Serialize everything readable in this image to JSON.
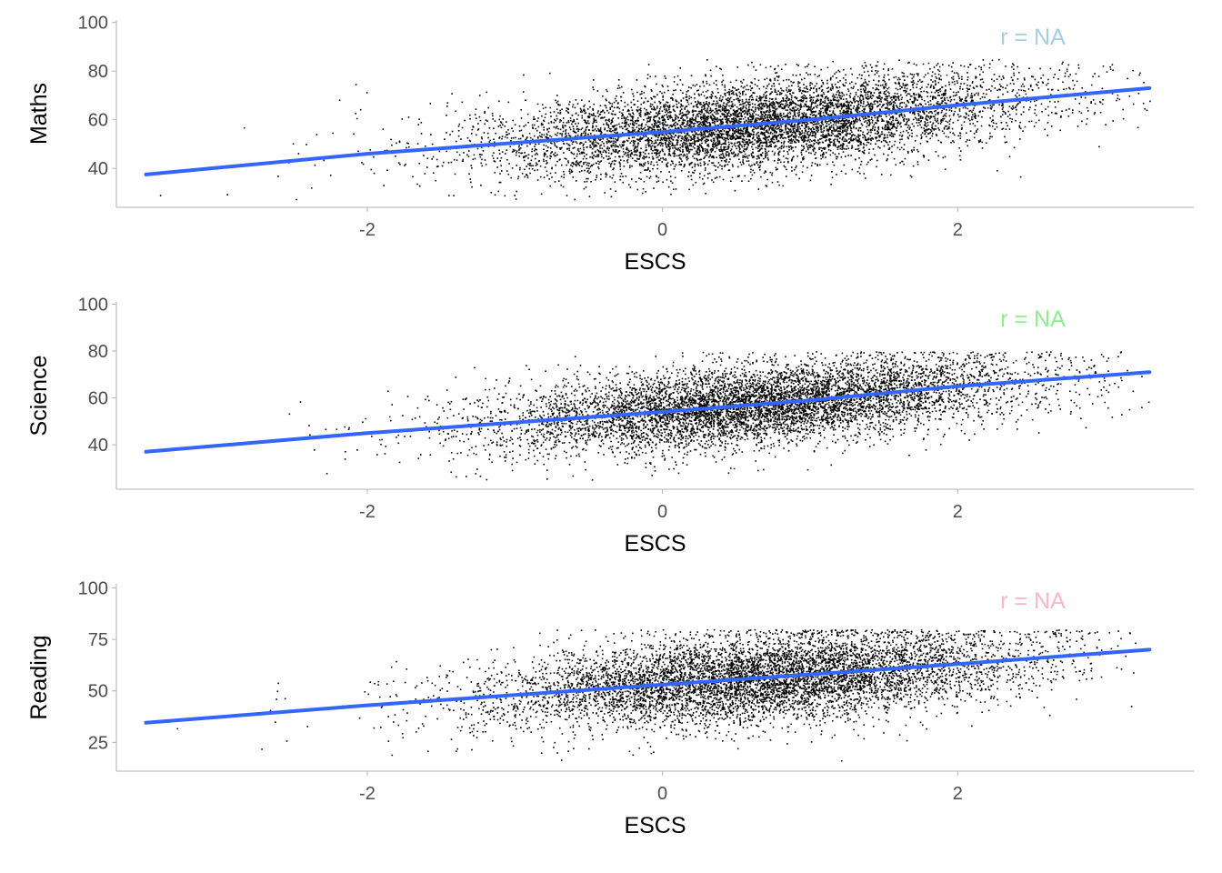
{
  "chart_data": [
    {
      "type": "scatter",
      "xlabel": "ESCS",
      "ylabel": "Maths",
      "annotation": "r = NA",
      "annotation_color": "#A6CEE3",
      "xlim": [
        -3.7,
        3.6
      ],
      "ylim": [
        24,
        101
      ],
      "xticks": [
        -2,
        0,
        2
      ],
      "yticks": [
        40,
        60,
        80,
        100
      ],
      "grid": false,
      "point_color": "#000000",
      "trend_color": "#3366FF",
      "trend": {
        "x": [
          -3.5,
          -2,
          0,
          1,
          2,
          3.3
        ],
        "y": [
          37.5,
          46,
          55,
          60,
          66,
          73
        ]
      },
      "cloud": {
        "count": 7000,
        "x_range": [
          -3.5,
          3.3
        ],
        "x_center": 0.85,
        "y_range": [
          27,
          85
        ],
        "spread": 9
      }
    },
    {
      "type": "scatter",
      "xlabel": "ESCS",
      "ylabel": "Science",
      "annotation": "r = NA",
      "annotation_color": "#90EE90",
      "xlim": [
        -3.7,
        3.6
      ],
      "ylim": [
        21,
        101
      ],
      "xticks": [
        -2,
        0,
        2
      ],
      "yticks": [
        40,
        60,
        80,
        100
      ],
      "grid": false,
      "point_color": "#000000",
      "trend_color": "#3366FF",
      "trend": {
        "x": [
          -3.5,
          -2,
          0,
          1,
          2,
          3.3
        ],
        "y": [
          37,
          45,
          54,
          59,
          65,
          71
        ]
      },
      "cloud": {
        "count": 7000,
        "x_range": [
          -3.5,
          3.3
        ],
        "x_center": 0.85,
        "y_range": [
          25,
          80
        ],
        "spread": 8.5
      }
    },
    {
      "type": "scatter",
      "xlabel": "ESCS",
      "ylabel": "Reading",
      "annotation": "r = NA",
      "annotation_color": "#FFB6C1",
      "xlim": [
        -3.7,
        3.6
      ],
      "ylim": [
        11,
        102
      ],
      "xticks": [
        -2,
        0,
        2
      ],
      "yticks": [
        25,
        50,
        75,
        100
      ],
      "grid": false,
      "point_color": "#000000",
      "trend_color": "#3366FF",
      "trend": {
        "x": [
          -3.5,
          -2,
          0,
          1,
          2,
          3.3
        ],
        "y": [
          34.5,
          43,
          53,
          58,
          63,
          70
        ]
      },
      "cloud": {
        "count": 7000,
        "x_range": [
          -3.5,
          3.3
        ],
        "x_center": 0.85,
        "y_range": [
          16,
          80
        ],
        "spread": 10.5
      }
    }
  ]
}
